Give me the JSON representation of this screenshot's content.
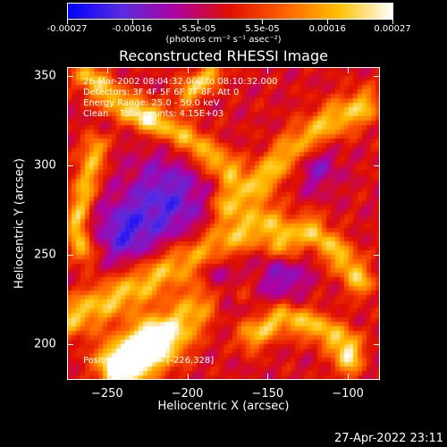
{
  "colorbar": {
    "tick_labels": [
      "-0.00027",
      "-0.00016",
      "-5.5e-05",
      "5.5e-05",
      "0.00016",
      "0.00027"
    ],
    "unit_label": "(photons cm⁻² s⁻¹ asec⁻²)",
    "colors": [
      "#0000ff",
      "#5a2de0",
      "#b000a0",
      "#e01000",
      "#ff6000",
      "#ffc000",
      "#ffffff"
    ]
  },
  "annotations": {
    "time_range": "26-Mar-2002 08:04:32.000 to 08:10:32.000",
    "detectors": "Detectors: 3F 4F 5F 6F 7F 8F, Att 0",
    "energy_range": "Energy Range: 25.0 - 50.0 keV",
    "clean": "Clean    Total counts: 4.15E+03",
    "peak": "Position of Peak = [-226,328]"
  },
  "footer": {
    "timestamp": "27-Apr-2022 23:11"
  },
  "chart_data": {
    "type": "heatmap",
    "title": "Reconstructed RHESSI Image",
    "xlabel": "Heliocentric X (arcsec)",
    "ylabel": "Heliocentric Y (arcsec)",
    "xlim": [
      -275,
      -80
    ],
    "ylim": [
      180,
      355
    ],
    "xticks": [
      -250,
      -200,
      -150,
      -100
    ],
    "yticks": [
      200,
      250,
      300,
      350
    ],
    "value_range": [
      -0.00027,
      0.00027
    ],
    "peak_position": [
      -226,
      328
    ],
    "ridges": [
      {
        "points": [
          [
            -272,
            215
          ],
          [
            -240,
            228
          ],
          [
            -205,
            245
          ],
          [
            -175,
            258
          ],
          [
            -150,
            268
          ]
        ],
        "width": 8
      },
      {
        "points": [
          [
            -175,
            278
          ],
          [
            -150,
            295
          ],
          [
            -130,
            312
          ],
          [
            -110,
            325
          ],
          [
            -90,
            333
          ]
        ],
        "width": 7
      },
      {
        "points": [
          [
            -262,
            350
          ],
          [
            -245,
            336
          ],
          [
            -228,
            328
          ],
          [
            -205,
            318
          ],
          [
            -175,
            298
          ]
        ],
        "width": 6
      },
      {
        "points": [
          [
            -265,
            252
          ],
          [
            -270,
            268
          ],
          [
            -264,
            288
          ],
          [
            -257,
            310
          ]
        ],
        "width": 5
      },
      {
        "points": [
          [
            -245,
            190
          ],
          [
            -225,
            198
          ],
          [
            -205,
            210
          ],
          [
            -190,
            225
          ]
        ],
        "width": 9
      },
      {
        "points": [
          [
            -140,
            255
          ],
          [
            -125,
            265
          ],
          [
            -105,
            250
          ],
          [
            -92,
            235
          ]
        ],
        "width": 6
      },
      {
        "points": [
          [
            -160,
            205
          ],
          [
            -140,
            215
          ],
          [
            -120,
            210
          ],
          [
            -100,
            200
          ]
        ],
        "width": 6
      },
      {
        "points": [
          [
            -200,
            340
          ],
          [
            -195,
            345
          ],
          [
            -185,
            350
          ]
        ],
        "width": 5
      }
    ],
    "hotspots": [
      {
        "pos": [
          -222,
          200
        ],
        "amp": 0.8,
        "r": 11
      },
      {
        "pos": [
          -240,
          186
        ],
        "amp": 0.75,
        "r": 9
      },
      {
        "pos": [
          -100,
          190
        ],
        "amp": 0.7,
        "r": 6
      },
      {
        "pos": [
          -168,
          232
        ],
        "amp": 0.45,
        "r": 6
      }
    ],
    "cold_regions": [
      {
        "pos": [
          -213,
          280
        ],
        "amp": -0.6,
        "r": 18
      },
      {
        "pos": [
          -240,
          262
        ],
        "amp": -0.55,
        "r": 12
      },
      {
        "pos": [
          -180,
          235
        ],
        "amp": -0.5,
        "r": 12
      },
      {
        "pos": [
          -140,
          238
        ],
        "amp": -0.45,
        "r": 10
      },
      {
        "pos": [
          -120,
          300
        ],
        "amp": -0.4,
        "r": 10
      }
    ]
  }
}
